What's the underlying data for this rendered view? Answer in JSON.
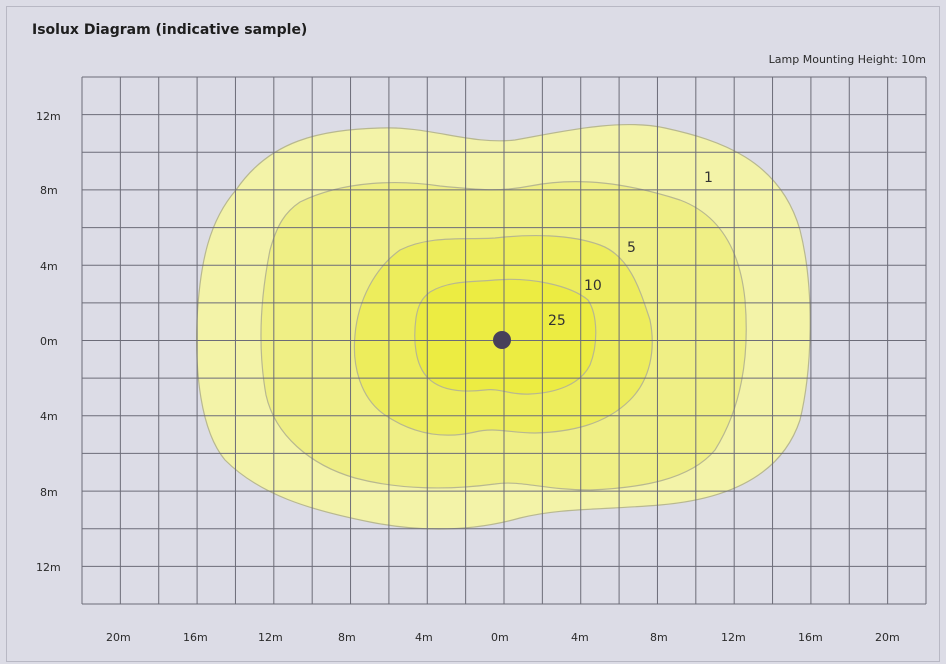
{
  "title": "Isolux Diagram (indicative sample)",
  "subtitle": "Lamp Mounting Height: 10m",
  "y_axis_labels": [
    "12m",
    "8m",
    "4m",
    "0m",
    "4m",
    "8m",
    "12m"
  ],
  "x_axis_labels": [
    "20m",
    "16m",
    "12m",
    "8m",
    "4m",
    "0m",
    "4m",
    "8m",
    "12m",
    "16m",
    "20m"
  ],
  "contours": [
    {
      "label": "1",
      "color": "#f3f3a8"
    },
    {
      "label": "5",
      "color": "#efef85"
    },
    {
      "label": "10",
      "color": "#eded5c"
    },
    {
      "label": "25",
      "color": "#ecec42"
    }
  ],
  "lamp_color": "#48405a",
  "grid_color": "#6c6c78"
}
